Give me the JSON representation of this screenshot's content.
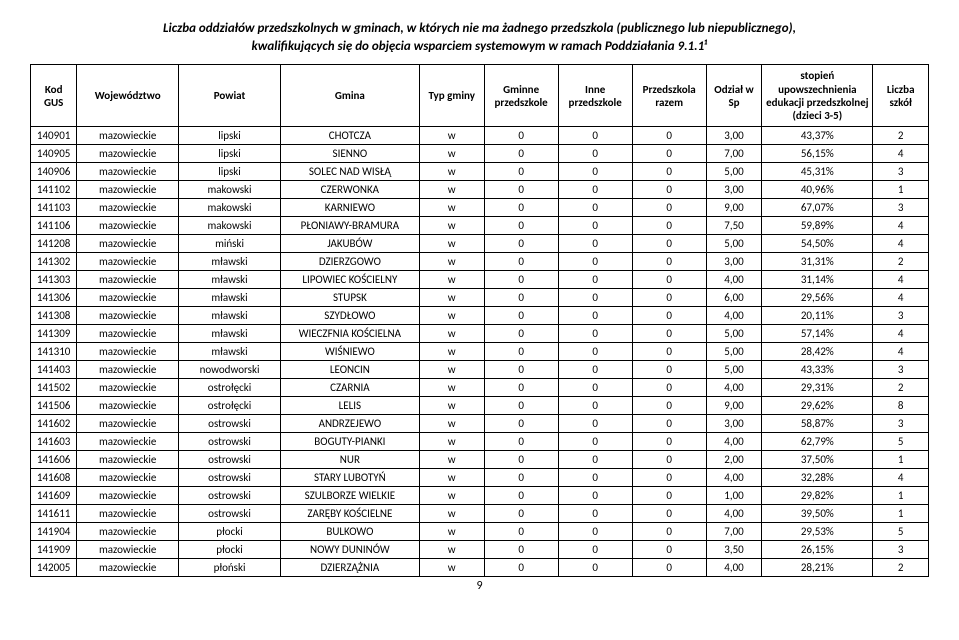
{
  "title_line1": "Liczba oddziałów przedszkolnych w gminach, w których nie ma żadnego przedszkola (publicznego lub niepublicznego),",
  "title_line2": "kwalifikujących się do objęcia wsparciem systemowym w ramach Poddziałania 9.1.1¹",
  "page_number": "9",
  "headers": {
    "kod": "Kod GUS",
    "woj": "Województwo",
    "pow": "Powiat",
    "gmina": "Gmina",
    "typ": "Typ gminy",
    "gp": "Gminne przedszkole",
    "ip": "Inne przedszkole",
    "pr": "Przedszkola razem",
    "od": "Odział w Sp",
    "st": "stopień upowszechnienia edukacji przedszkolnej (dzieci 3-5)",
    "ls": "Liczba szkół"
  },
  "rows": [
    {
      "kod": "140901",
      "woj": "mazowieckie",
      "pow": "lipski",
      "gmina": "CHOTCZA",
      "typ": "w",
      "gp": "0",
      "ip": "0",
      "pr": "0",
      "od": "3,00",
      "st": "43,37%",
      "ls": "2"
    },
    {
      "kod": "140905",
      "woj": "mazowieckie",
      "pow": "lipski",
      "gmina": "SIENNO",
      "typ": "w",
      "gp": "0",
      "ip": "0",
      "pr": "0",
      "od": "7,00",
      "st": "56,15%",
      "ls": "4"
    },
    {
      "kod": "140906",
      "woj": "mazowieckie",
      "pow": "lipski",
      "gmina": "SOLEC NAD WISŁĄ",
      "typ": "w",
      "gp": "0",
      "ip": "0",
      "pr": "0",
      "od": "5,00",
      "st": "45,31%",
      "ls": "3"
    },
    {
      "kod": "141102",
      "woj": "mazowieckie",
      "pow": "makowski",
      "gmina": "CZERWONKA",
      "typ": "w",
      "gp": "0",
      "ip": "0",
      "pr": "0",
      "od": "3,00",
      "st": "40,96%",
      "ls": "1"
    },
    {
      "kod": "141103",
      "woj": "mazowieckie",
      "pow": "makowski",
      "gmina": "KARNIEWO",
      "typ": "w",
      "gp": "0",
      "ip": "0",
      "pr": "0",
      "od": "9,00",
      "st": "67,07%",
      "ls": "3"
    },
    {
      "kod": "141106",
      "woj": "mazowieckie",
      "pow": "makowski",
      "gmina": "PŁONIAWY-BRAMURA",
      "typ": "w",
      "gp": "0",
      "ip": "0",
      "pr": "0",
      "od": "7,50",
      "st": "59,89%",
      "ls": "4"
    },
    {
      "kod": "141208",
      "woj": "mazowieckie",
      "pow": "miński",
      "gmina": "JAKUBÓW",
      "typ": "w",
      "gp": "0",
      "ip": "0",
      "pr": "0",
      "od": "5,00",
      "st": "54,50%",
      "ls": "4"
    },
    {
      "kod": "141302",
      "woj": "mazowieckie",
      "pow": "mławski",
      "gmina": "DZIERZGOWO",
      "typ": "w",
      "gp": "0",
      "ip": "0",
      "pr": "0",
      "od": "3,00",
      "st": "31,31%",
      "ls": "2"
    },
    {
      "kod": "141303",
      "woj": "mazowieckie",
      "pow": "mławski",
      "gmina": "LIPOWIEC KOŚCIELNY",
      "typ": "w",
      "gp": "0",
      "ip": "0",
      "pr": "0",
      "od": "4,00",
      "st": "31,14%",
      "ls": "4"
    },
    {
      "kod": "141306",
      "woj": "mazowieckie",
      "pow": "mławski",
      "gmina": "STUPSK",
      "typ": "w",
      "gp": "0",
      "ip": "0",
      "pr": "0",
      "od": "6,00",
      "st": "29,56%",
      "ls": "4"
    },
    {
      "kod": "141308",
      "woj": "mazowieckie",
      "pow": "mławski",
      "gmina": "SZYDŁOWO",
      "typ": "w",
      "gp": "0",
      "ip": "0",
      "pr": "0",
      "od": "4,00",
      "st": "20,11%",
      "ls": "3"
    },
    {
      "kod": "141309",
      "woj": "mazowieckie",
      "pow": "mławski",
      "gmina": "WIECZFNIA KOŚCIELNA",
      "typ": "w",
      "gp": "0",
      "ip": "0",
      "pr": "0",
      "od": "5,00",
      "st": "57,14%",
      "ls": "4"
    },
    {
      "kod": "141310",
      "woj": "mazowieckie",
      "pow": "mławski",
      "gmina": "WIŚNIEWO",
      "typ": "w",
      "gp": "0",
      "ip": "0",
      "pr": "0",
      "od": "5,00",
      "st": "28,42%",
      "ls": "4"
    },
    {
      "kod": "141403",
      "woj": "mazowieckie",
      "pow": "nowodworski",
      "gmina": "LEONCIN",
      "typ": "w",
      "gp": "0",
      "ip": "0",
      "pr": "0",
      "od": "5,00",
      "st": "43,33%",
      "ls": "3"
    },
    {
      "kod": "141502",
      "woj": "mazowieckie",
      "pow": "ostrołęcki",
      "gmina": "CZARNIA",
      "typ": "w",
      "gp": "0",
      "ip": "0",
      "pr": "0",
      "od": "4,00",
      "st": "29,31%",
      "ls": "2"
    },
    {
      "kod": "141506",
      "woj": "mazowieckie",
      "pow": "ostrołęcki",
      "gmina": "LELIS",
      "typ": "w",
      "gp": "0",
      "ip": "0",
      "pr": "0",
      "od": "9,00",
      "st": "29,62%",
      "ls": "8"
    },
    {
      "kod": "141602",
      "woj": "mazowieckie",
      "pow": "ostrowski",
      "gmina": "ANDRZEJEWO",
      "typ": "w",
      "gp": "0",
      "ip": "0",
      "pr": "0",
      "od": "3,00",
      "st": "58,87%",
      "ls": "3"
    },
    {
      "kod": "141603",
      "woj": "mazowieckie",
      "pow": "ostrowski",
      "gmina": "BOGUTY-PIANKI",
      "typ": "w",
      "gp": "0",
      "ip": "0",
      "pr": "0",
      "od": "4,00",
      "st": "62,79%",
      "ls": "5"
    },
    {
      "kod": "141606",
      "woj": "mazowieckie",
      "pow": "ostrowski",
      "gmina": "NUR",
      "typ": "w",
      "gp": "0",
      "ip": "0",
      "pr": "0",
      "od": "2,00",
      "st": "37,50%",
      "ls": "1"
    },
    {
      "kod": "141608",
      "woj": "mazowieckie",
      "pow": "ostrowski",
      "gmina": "STARY LUBOTYŃ",
      "typ": "w",
      "gp": "0",
      "ip": "0",
      "pr": "0",
      "od": "4,00",
      "st": "32,28%",
      "ls": "4"
    },
    {
      "kod": "141609",
      "woj": "mazowieckie",
      "pow": "ostrowski",
      "gmina": "SZULBORZE WIELKIE",
      "typ": "w",
      "gp": "0",
      "ip": "0",
      "pr": "0",
      "od": "1,00",
      "st": "29,82%",
      "ls": "1"
    },
    {
      "kod": "141611",
      "woj": "mazowieckie",
      "pow": "ostrowski",
      "gmina": "ZARĘBY KOŚCIELNE",
      "typ": "w",
      "gp": "0",
      "ip": "0",
      "pr": "0",
      "od": "4,00",
      "st": "39,50%",
      "ls": "1"
    },
    {
      "kod": "141904",
      "woj": "mazowieckie",
      "pow": "płocki",
      "gmina": "BULKOWO",
      "typ": "w",
      "gp": "0",
      "ip": "0",
      "pr": "0",
      "od": "7,00",
      "st": "29,53%",
      "ls": "5"
    },
    {
      "kod": "141909",
      "woj": "mazowieckie",
      "pow": "płocki",
      "gmina": "NOWY DUNINÓW",
      "typ": "w",
      "gp": "0",
      "ip": "0",
      "pr": "0",
      "od": "3,50",
      "st": "26,15%",
      "ls": "3"
    },
    {
      "kod": "142005",
      "woj": "mazowieckie",
      "pow": "płoński",
      "gmina": "DZIERZĄŻNIA",
      "typ": "w",
      "gp": "0",
      "ip": "0",
      "pr": "0",
      "od": "4,00",
      "st": "28,21%",
      "ls": "2"
    }
  ]
}
